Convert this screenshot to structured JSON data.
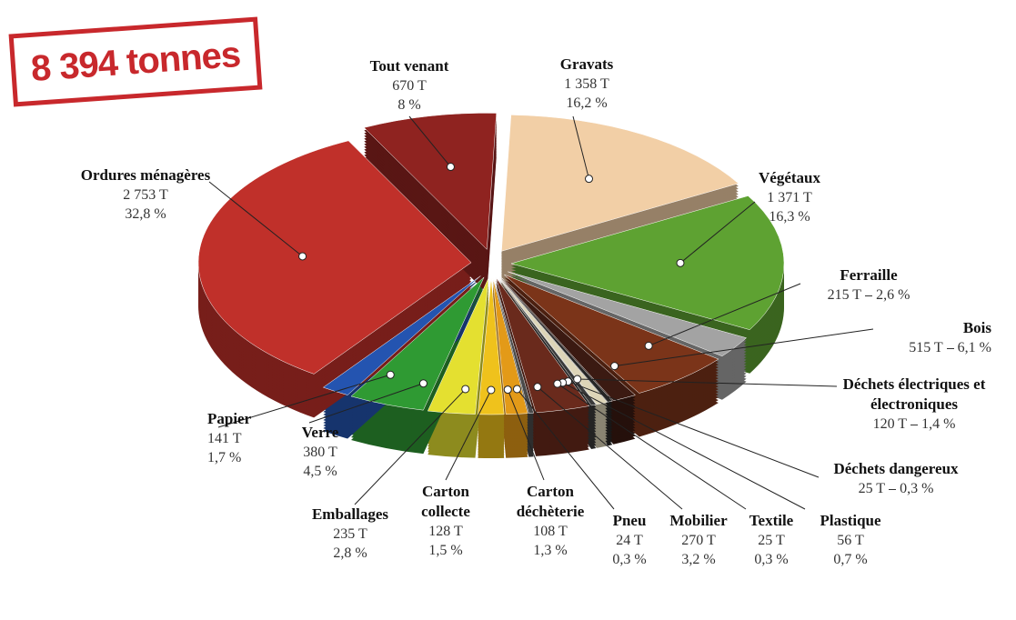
{
  "chart_data": {
    "type": "pie",
    "title": "8 394 tonnes",
    "categories": [
      "Gravats",
      "Végétaux",
      "Ferraille",
      "Bois",
      "Déchets électriques et électroniques",
      "Déchets dangereux",
      "Plastique",
      "Textile",
      "Mobilier",
      "Pneu",
      "Carton déchèterie",
      "Carton collecte",
      "Emballages",
      "Verre",
      "Papier",
      "Ordures ménagères",
      "Tout venant"
    ],
    "values": [
      1358,
      1371,
      215,
      515,
      120,
      25,
      56,
      25,
      270,
      24,
      108,
      128,
      235,
      380,
      141,
      2753,
      670
    ],
    "value_labels": [
      "1 358 T",
      "1 371 T",
      "215 T",
      "515 T",
      "120 T",
      "25 T",
      "56 T",
      "25 T",
      "270 T",
      "24 T",
      "108 T",
      "128 T",
      "235 T",
      "380 T",
      "141 T",
      "2 753 T",
      "670 T"
    ],
    "percent_labels": [
      "16,2 %",
      "16,3 %",
      "2,6 %",
      "6,1 %",
      "1,4 %",
      "0,3 %",
      "0,7 %",
      "0,3 %",
      "3,2 %",
      "0,3 %",
      "1,3 %",
      "1,5 %",
      "2,8 %",
      "4,5 %",
      "1,7 %",
      "32,8 %",
      "8 %"
    ],
    "colors": [
      "#f2cfa6",
      "#5ea232",
      "#a3a3a3",
      "#7b3419",
      "#3b1a12",
      "#262626",
      "#ddd5b8",
      "#3a3a3a",
      "#6a2a1c",
      "#4a4a4a",
      "#e39a18",
      "#efc21c",
      "#e4e030",
      "#2f9a33",
      "#2454b0",
      "#c0302a",
      "#8f2320"
    ]
  }
}
